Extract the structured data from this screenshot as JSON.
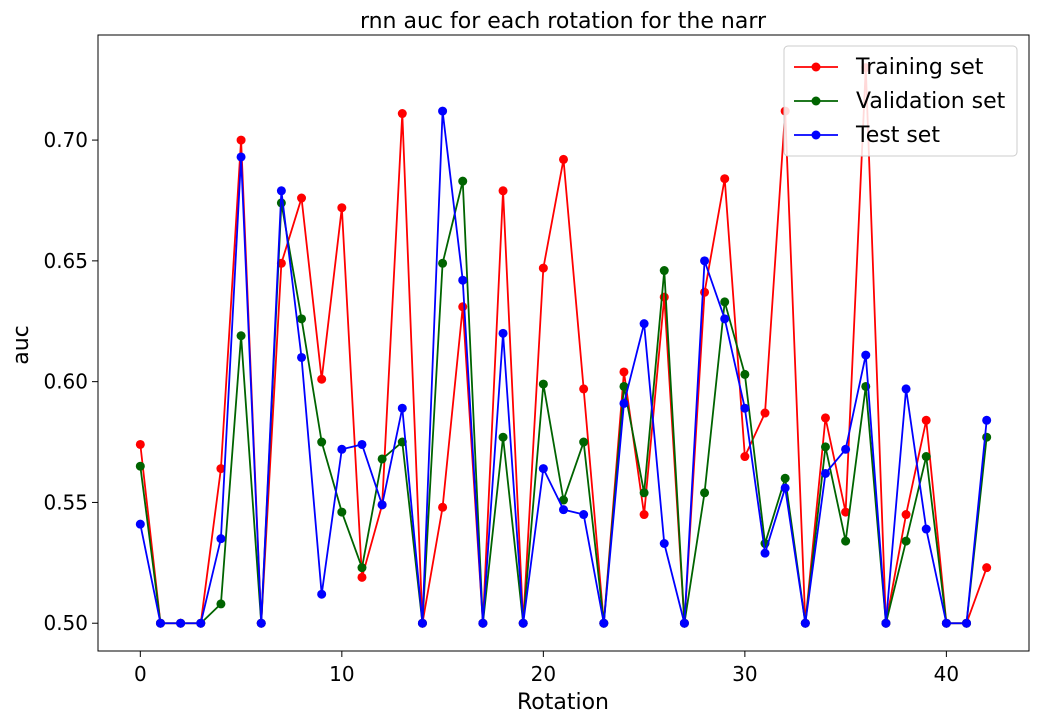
{
  "chart_data": {
    "type": "line",
    "title": "rnn auc for each rotation for the narr",
    "xlabel": "Rotation",
    "ylabel": "auc",
    "xlim": [
      -2.1,
      44.1
    ],
    "ylim": [
      0.4885,
      0.7435
    ],
    "xticks": [
      0,
      10,
      20,
      30,
      40
    ],
    "xtick_labels": [
      "0",
      "10",
      "20",
      "30",
      "40"
    ],
    "yticks": [
      0.5,
      0.55,
      0.6,
      0.65,
      0.7
    ],
    "ytick_labels": [
      "0.50",
      "0.55",
      "0.60",
      "0.65",
      "0.70"
    ],
    "grid": false,
    "legend_position": "top-right",
    "x": [
      0,
      1,
      2,
      3,
      4,
      5,
      6,
      7,
      8,
      9,
      10,
      11,
      12,
      13,
      14,
      15,
      16,
      17,
      18,
      19,
      20,
      21,
      22,
      23,
      24,
      25,
      26,
      27,
      28,
      29,
      30,
      31,
      32,
      33,
      34,
      35,
      36,
      37,
      38,
      39,
      40,
      41,
      42
    ],
    "series": [
      {
        "name": "Training set",
        "color": "#ff0000",
        "values": [
          0.574,
          0.5,
          0.5,
          0.5,
          0.564,
          0.7,
          0.5,
          0.649,
          0.676,
          0.601,
          0.672,
          0.519,
          0.549,
          0.711,
          0.5,
          0.548,
          0.631,
          0.5,
          0.679,
          0.5,
          0.647,
          0.692,
          0.597,
          0.5,
          0.604,
          0.545,
          0.635,
          0.5,
          0.637,
          0.684,
          0.569,
          0.587,
          0.712,
          0.5,
          0.585,
          0.546,
          0.73,
          0.5,
          0.545,
          0.584,
          0.5,
          0.5,
          0.523
        ]
      },
      {
        "name": "Validation set",
        "color": "#006400",
        "values": [
          0.565,
          0.5,
          0.5,
          0.5,
          0.508,
          0.619,
          0.5,
          0.674,
          0.626,
          0.575,
          0.546,
          0.523,
          0.568,
          0.575,
          0.5,
          0.649,
          0.683,
          0.5,
          0.577,
          0.5,
          0.599,
          0.551,
          0.575,
          0.5,
          0.598,
          0.554,
          0.646,
          0.5,
          0.554,
          0.633,
          0.603,
          0.533,
          0.56,
          0.5,
          0.573,
          0.534,
          0.598,
          0.5,
          0.534,
          0.569,
          0.5,
          0.5,
          0.577
        ]
      },
      {
        "name": "Test set",
        "color": "#0000ff",
        "values": [
          0.541,
          0.5,
          0.5,
          0.5,
          0.535,
          0.693,
          0.5,
          0.679,
          0.61,
          0.512,
          0.572,
          0.574,
          0.549,
          0.589,
          0.5,
          0.712,
          0.642,
          0.5,
          0.62,
          0.5,
          0.564,
          0.547,
          0.545,
          0.5,
          0.591,
          0.624,
          0.533,
          0.5,
          0.65,
          0.626,
          0.589,
          0.529,
          0.556,
          0.5,
          0.562,
          0.572,
          0.611,
          0.5,
          0.597,
          0.539,
          0.5,
          0.5,
          0.584
        ]
      }
    ]
  }
}
